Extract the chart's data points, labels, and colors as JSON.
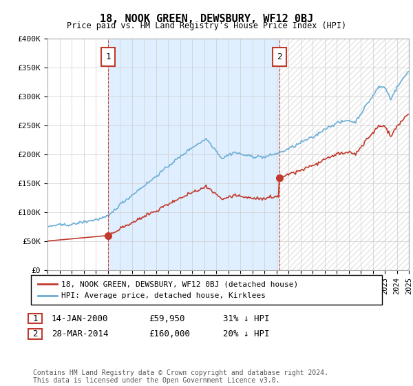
{
  "title": "18, NOOK GREEN, DEWSBURY, WF12 0BJ",
  "subtitle": "Price paid vs. HM Land Registry's House Price Index (HPI)",
  "ylim": [
    0,
    400000
  ],
  "yticks": [
    0,
    50000,
    100000,
    150000,
    200000,
    250000,
    300000,
    350000,
    400000
  ],
  "ytick_labels": [
    "£0",
    "£50K",
    "£100K",
    "£150K",
    "£200K",
    "£250K",
    "£300K",
    "£350K",
    "£400K"
  ],
  "xlim_start": 1995,
  "xlim_end": 2025,
  "sale1_date": 2000.04,
  "sale1_price": 59950,
  "sale1_label": "1",
  "sale1_text": "14-JAN-2000",
  "sale1_price_text": "£59,950",
  "sale1_hpi_text": "31% ↓ HPI",
  "sale2_date": 2014.24,
  "sale2_price": 160000,
  "sale2_label": "2",
  "sale2_text": "28-MAR-2014",
  "sale2_price_text": "£160,000",
  "sale2_hpi_text": "20% ↓ HPI",
  "hpi_line_color": "#6baed6",
  "price_line_color": "#c0392b",
  "vline_color": "#c0392b",
  "shade_between_color": "#ddeeff",
  "legend_line1": "18, NOOK GREEN, DEWSBURY, WF12 0BJ (detached house)",
  "legend_line2": "HPI: Average price, detached house, Kirklees",
  "footer_text": "Contains HM Land Registry data © Crown copyright and database right 2024.\nThis data is licensed under the Open Government Licence v3.0.",
  "background_color": "#ffffff",
  "grid_color": "#cccccc"
}
